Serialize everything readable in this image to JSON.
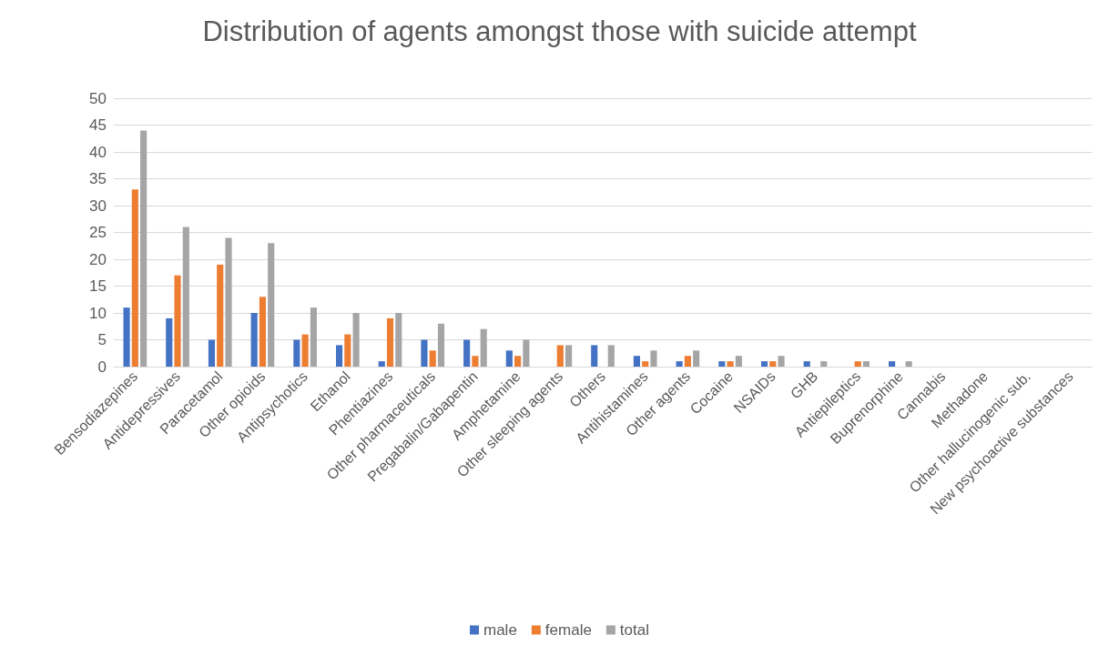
{
  "chart_data": {
    "type": "bar",
    "title": "Distribution of agents amongst those with suicide attempt",
    "categories": [
      "Bensodiazepines",
      "Antidepressives",
      "Paracetamol",
      "Other opioids",
      "Antipsychotics",
      "Ethanol",
      "Phentiazines",
      "Other pharmaceuticals",
      "Pregabalin/Gabapentin",
      "Amphetamine",
      "Other sleeping agents",
      "Others",
      "Antihistamines",
      "Other agents",
      "Cocaine",
      "NSAIDs",
      "GHB",
      "Antiepileptics",
      "Buprenorphine",
      "Cannabis",
      "Methadone",
      "Other hallucinogenic sub.",
      "New psychoactive substances"
    ],
    "series": [
      {
        "name": "male",
        "color": "#4472c4",
        "values": [
          11,
          9,
          5,
          10,
          5,
          4,
          1,
          5,
          5,
          3,
          0,
          4,
          2,
          1,
          1,
          1,
          1,
          0,
          1,
          0,
          0,
          0,
          0
        ]
      },
      {
        "name": "female",
        "color": "#ed7d31",
        "values": [
          33,
          17,
          19,
          13,
          6,
          6,
          9,
          3,
          2,
          2,
          4,
          0,
          1,
          2,
          1,
          1,
          0,
          1,
          0,
          0,
          0,
          0,
          0
        ]
      },
      {
        "name": "total",
        "color": "#a5a5a5",
        "values": [
          44,
          26,
          24,
          23,
          11,
          10,
          10,
          8,
          7,
          5,
          4,
          4,
          3,
          3,
          2,
          2,
          1,
          1,
          1,
          0,
          0,
          0,
          0
        ]
      }
    ],
    "ylim": [
      0,
      50
    ],
    "yticks": [
      0,
      5,
      10,
      15,
      20,
      25,
      30,
      35,
      40,
      45,
      50
    ],
    "grid": "y",
    "legend": "bottom"
  }
}
